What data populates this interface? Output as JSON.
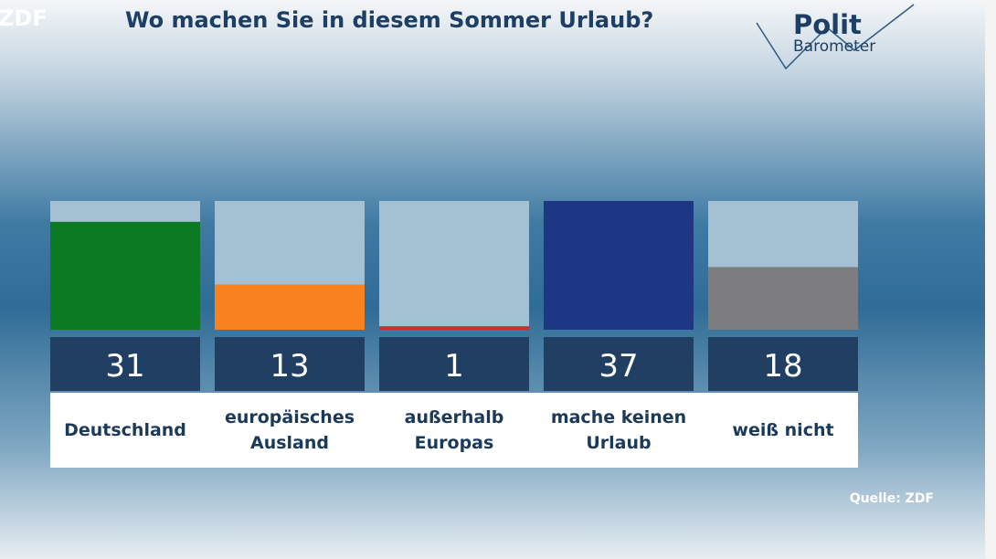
{
  "chart_data": {
    "type": "bar",
    "title": "Wo machen Sie in diesem Sommer Urlaub?",
    "logo": "ZDF",
    "brand": {
      "top": "Polit",
      "bottom": "Barometer"
    },
    "source": "Quelle: ZDF",
    "categories": [
      "Deutschland",
      "europäisches Ausland",
      "außerhalb Europas",
      "mache keinen Urlaub",
      "weiß nicht"
    ],
    "values": [
      31,
      13,
      1,
      37,
      18
    ],
    "colors": [
      "#0b7a22",
      "#f7821f",
      "#c8302a",
      "#1e3784",
      "#7d7d80"
    ]
  }
}
